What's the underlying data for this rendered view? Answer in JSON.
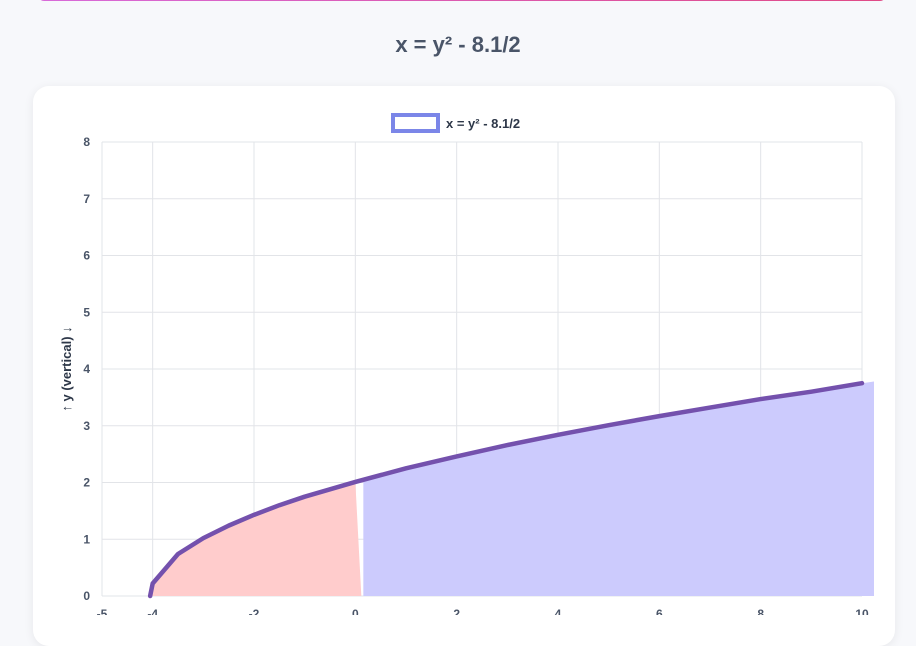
{
  "page": {
    "title": "x = y² - 8.1/2"
  },
  "chart_data": {
    "type": "area",
    "title": "",
    "legend": {
      "position": "top",
      "entries": [
        "x = y² - 8.1/2"
      ]
    },
    "ylabel": "↑ y (vertical) ↓",
    "xlabel": "",
    "xlim": [
      -5,
      10
    ],
    "ylim": [
      0,
      8
    ],
    "x_ticks": [
      -5,
      -4,
      -2,
      0,
      2,
      4,
      6,
      8,
      10
    ],
    "y_ticks": [
      0,
      1,
      2,
      3,
      4,
      5,
      6,
      7,
      8
    ],
    "grid": true,
    "series": [
      {
        "name": "x = y² - 8.1/2",
        "equation": "x = y² - 4.05",
        "y_min": 0,
        "x": [
          -4.05,
          -4,
          -3.5,
          -3,
          -2.5,
          -2,
          -1.5,
          -1,
          -0.5,
          0,
          1,
          2,
          3,
          4,
          5,
          6,
          7,
          8,
          9,
          10
        ],
        "y": [
          0,
          0.22,
          0.74,
          1.02,
          1.24,
          1.43,
          1.6,
          1.75,
          1.88,
          2.01,
          2.25,
          2.46,
          2.66,
          2.84,
          3.01,
          3.17,
          3.32,
          3.47,
          3.6,
          3.75
        ],
        "line_color": "#7451ad",
        "fill_negative_x": "#ffcccc",
        "fill_positive_x": "#cccbfd",
        "legend_swatch": "#7b86e8"
      }
    ]
  }
}
